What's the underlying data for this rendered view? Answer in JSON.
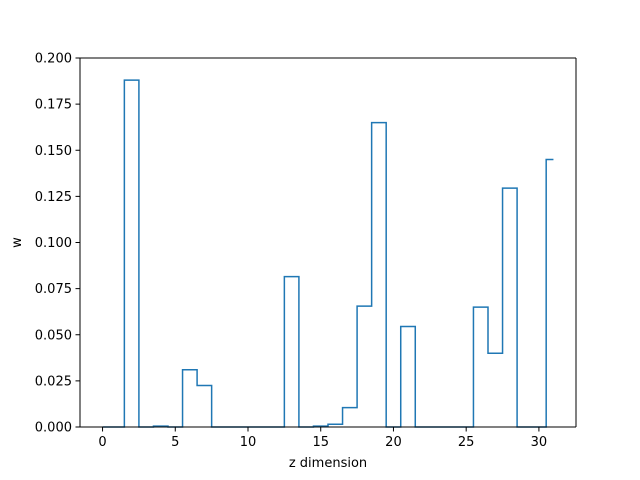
{
  "colors": {
    "series": "#1f77b4",
    "axes": "#000000",
    "background": "#ffffff"
  },
  "chart_data": {
    "type": "line",
    "drawstyle": "steps-mid",
    "title": "",
    "xlabel": "z dimension",
    "ylabel": "w",
    "xlim": [
      -1.55,
      32.55
    ],
    "ylim": [
      0,
      0.2
    ],
    "xticks": [
      0,
      5,
      10,
      15,
      20,
      25,
      30
    ],
    "yticks": [
      0.0,
      0.025,
      0.05,
      0.075,
      0.1,
      0.125,
      0.15,
      0.175,
      0.2
    ],
    "xtick_labels": [
      "0",
      "5",
      "10",
      "15",
      "20",
      "25",
      "30"
    ],
    "ytick_labels": [
      "0.000",
      "0.025",
      "0.050",
      "0.075",
      "0.100",
      "0.125",
      "0.150",
      "0.175",
      "0.200"
    ],
    "grid": false,
    "legend": false,
    "series": [
      {
        "x": [
          0,
          1,
          2,
          3,
          4,
          5,
          6,
          7,
          8,
          9,
          10,
          11,
          12,
          13,
          14,
          15,
          16,
          17,
          18,
          19,
          20,
          21,
          22,
          23,
          24,
          25,
          26,
          27,
          28,
          29,
          30,
          31
        ],
        "y": [
          0.0,
          0.0,
          0.188,
          0.0,
          0.0005,
          0.0,
          0.031,
          0.0225,
          0.0,
          0.0,
          0.0,
          0.0,
          0.0,
          0.0815,
          0.0,
          0.0005,
          0.0015,
          0.0105,
          0.0655,
          0.165,
          0.0,
          0.0545,
          0.0,
          0.0,
          0.0,
          0.0,
          0.065,
          0.04,
          0.1295,
          0.0,
          0.0,
          0.145
        ]
      }
    ]
  }
}
